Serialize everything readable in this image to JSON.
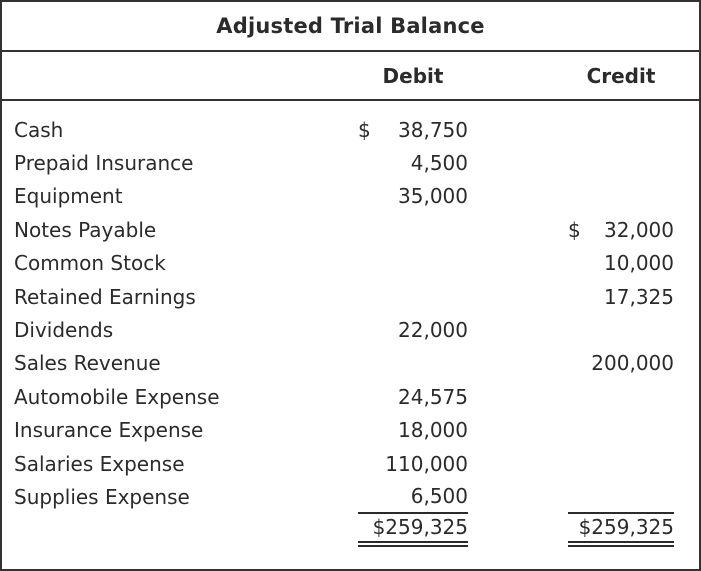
{
  "title": "Adjusted Trial Balance",
  "columns": {
    "debit_label": "Debit",
    "credit_label": "Credit"
  },
  "rows": [
    {
      "account": "Cash",
      "debit_cur": "$",
      "debit": "38,750",
      "credit_cur": "",
      "credit": ""
    },
    {
      "account": "Prepaid Insurance",
      "debit_cur": "",
      "debit": "4,500",
      "credit_cur": "",
      "credit": ""
    },
    {
      "account": "Equipment",
      "debit_cur": "",
      "debit": "35,000",
      "credit_cur": "",
      "credit": ""
    },
    {
      "account": "Notes Payable",
      "debit_cur": "",
      "debit": "",
      "credit_cur": "$",
      "credit": "32,000"
    },
    {
      "account": "Common Stock",
      "debit_cur": "",
      "debit": "",
      "credit_cur": "",
      "credit": "10,000"
    },
    {
      "account": "Retained Earnings",
      "debit_cur": "",
      "debit": "",
      "credit_cur": "",
      "credit": "17,325"
    },
    {
      "account": "Dividends",
      "debit_cur": "",
      "debit": "22,000",
      "credit_cur": "",
      "credit": ""
    },
    {
      "account": "Sales Revenue",
      "debit_cur": "",
      "debit": "",
      "credit_cur": "",
      "credit": "200,000"
    },
    {
      "account": "Automobile Expense",
      "debit_cur": "",
      "debit": "24,575",
      "credit_cur": "",
      "credit": ""
    },
    {
      "account": "Insurance Expense",
      "debit_cur": "",
      "debit": "18,000",
      "credit_cur": "",
      "credit": ""
    },
    {
      "account": "Salaries Expense",
      "debit_cur": "",
      "debit": "110,000",
      "credit_cur": "",
      "credit": ""
    },
    {
      "account": "Supplies Expense",
      "debit_cur": "",
      "debit": "6,500",
      "credit_cur": "",
      "credit": ""
    }
  ],
  "totals": {
    "debit": "$259,325",
    "credit": "$259,325"
  },
  "colors": {
    "text": "#2b2b2b",
    "border": "#333333",
    "background": "#ffffff"
  }
}
